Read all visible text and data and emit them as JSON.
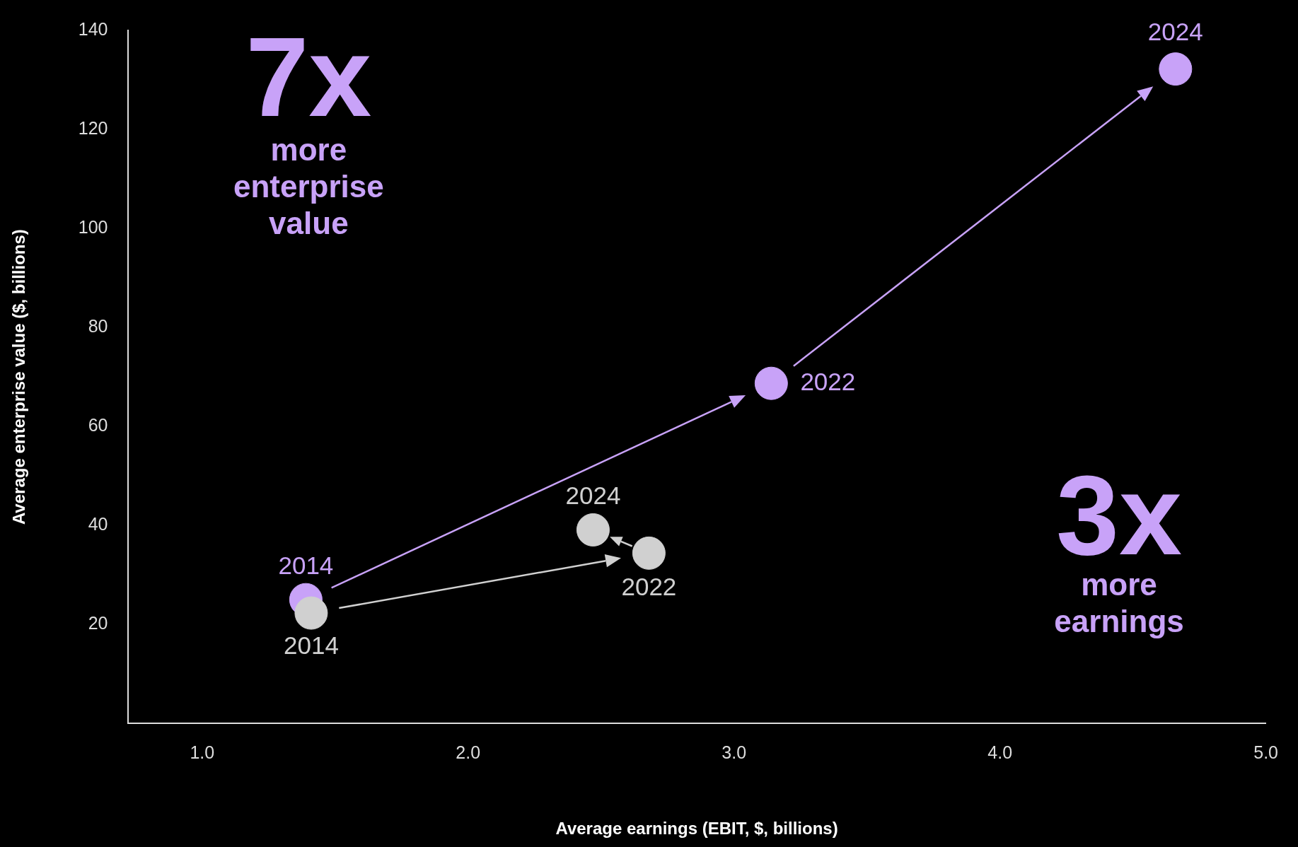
{
  "chart_data": {
    "type": "scatter",
    "xlabel": "Average earnings (EBIT, $, billions)",
    "ylabel": "Average enterprise value ($, billions)",
    "xlim": [
      0.72,
      5.0
    ],
    "xticks": [
      {
        "value": 1,
        "label": "1.0"
      },
      {
        "value": 2,
        "label": "2.0"
      },
      {
        "value": 3,
        "label": "3.0"
      },
      {
        "value": 4,
        "label": "4.0"
      },
      {
        "value": 5,
        "label": "5.0"
      }
    ],
    "ylim": [
      0,
      140
    ],
    "yticks": [
      20,
      40,
      60,
      80,
      100,
      120,
      140
    ],
    "grid": false,
    "legend": false,
    "marker": "circle",
    "series": [
      {
        "color": "#c8a2f8",
        "x": [
          1.39,
          3.14,
          4.66
        ],
        "values": [
          25,
          68.7,
          132.2
        ]
      },
      {
        "color": "#d0d0d0",
        "x": [
          1.41,
          2.68,
          2.47
        ],
        "values": [
          22.3,
          34.4,
          39.1
        ]
      }
    ],
    "annotations": [
      {
        "text": "2014",
        "x": 1.39,
        "y": 25
      },
      {
        "text": "2022",
        "x": 3.14,
        "y": 68.7
      },
      {
        "text": "2024",
        "x": 4.66,
        "y": 132.2
      },
      {
        "text": "2014",
        "x": 1.41,
        "y": 22.3
      },
      {
        "text": "2022",
        "x": 2.68,
        "y": 34.4
      },
      {
        "text": "2024",
        "x": 2.47,
        "y": 39.1
      },
      "7x",
      "more enterprise value",
      "3x",
      "more earnings"
    ]
  }
}
